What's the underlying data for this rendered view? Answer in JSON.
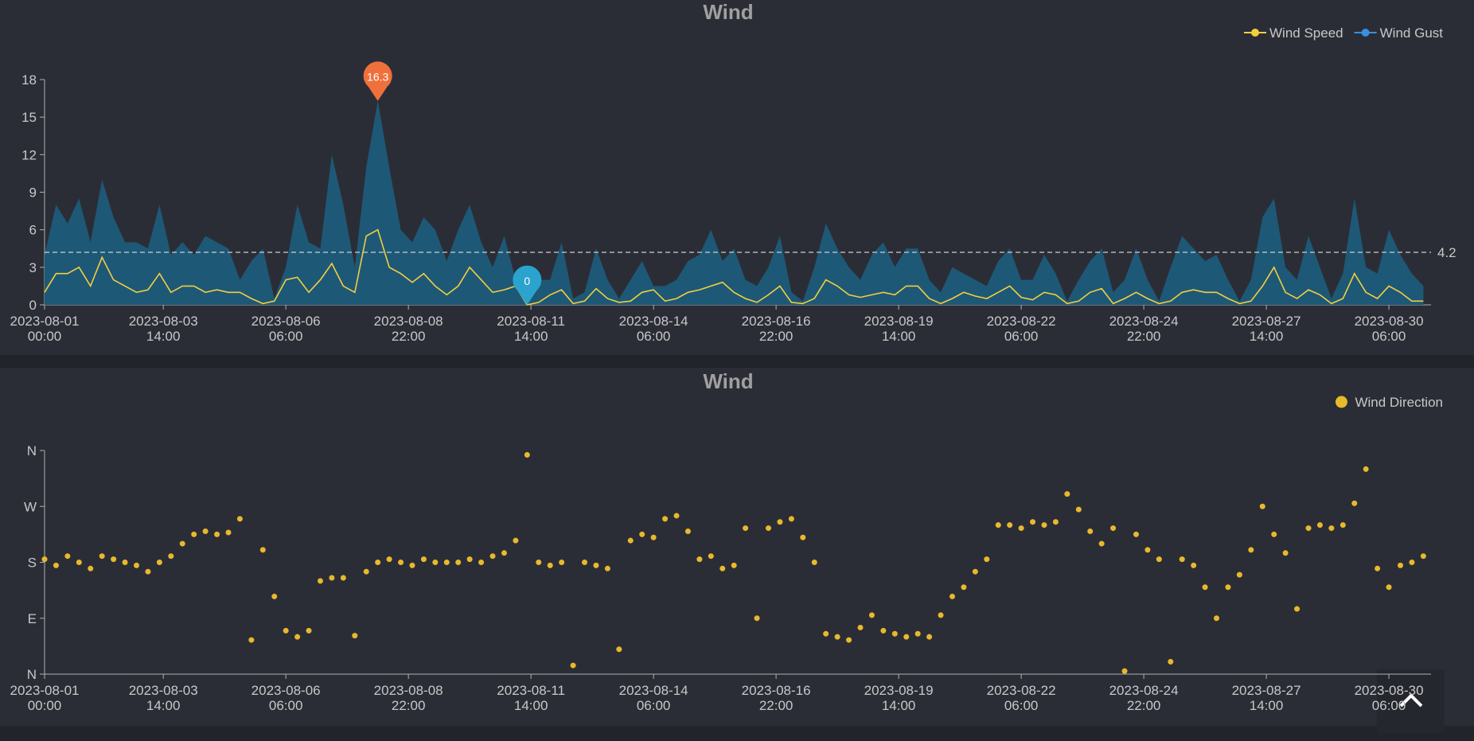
{
  "chart_data": [
    {
      "type": "line",
      "title": "Wind",
      "x": [
        "2023-08-01 00:00",
        "2023-08-01 06:00",
        "2023-08-01 12:00",
        "2023-08-01 18:00",
        "2023-08-02 00:00",
        "2023-08-02 06:00",
        "2023-08-02 12:00",
        "2023-08-02 18:00",
        "2023-08-03 00:00",
        "2023-08-03 06:00",
        "2023-08-03 12:00",
        "2023-08-03 18:00",
        "2023-08-04 00:00",
        "2023-08-04 06:00",
        "2023-08-04 12:00",
        "2023-08-04 18:00",
        "2023-08-05 00:00",
        "2023-08-05 06:00",
        "2023-08-05 12:00",
        "2023-08-05 18:00",
        "2023-08-06 00:00",
        "2023-08-06 06:00",
        "2023-08-06 12:00",
        "2023-08-06 18:00",
        "2023-08-07 00:00",
        "2023-08-07 06:00",
        "2023-08-07 12:00",
        "2023-08-07 18:00",
        "2023-08-08 00:00",
        "2023-08-08 06:00",
        "2023-08-08 12:00",
        "2023-08-08 18:00",
        "2023-08-09 00:00",
        "2023-08-09 06:00",
        "2023-08-09 12:00",
        "2023-08-09 18:00",
        "2023-08-10 00:00",
        "2023-08-10 06:00",
        "2023-08-10 12:00",
        "2023-08-10 18:00",
        "2023-08-11 00:00",
        "2023-08-11 06:00",
        "2023-08-11 12:00",
        "2023-08-11 18:00",
        "2023-08-12 00:00",
        "2023-08-12 06:00",
        "2023-08-12 12:00",
        "2023-08-12 18:00",
        "2023-08-13 00:00",
        "2023-08-13 06:00",
        "2023-08-13 12:00",
        "2023-08-13 18:00",
        "2023-08-14 00:00",
        "2023-08-14 06:00",
        "2023-08-14 12:00",
        "2023-08-14 18:00",
        "2023-08-15 00:00",
        "2023-08-15 06:00",
        "2023-08-15 12:00",
        "2023-08-15 18:00",
        "2023-08-16 00:00",
        "2023-08-16 06:00",
        "2023-08-16 12:00",
        "2023-08-16 18:00",
        "2023-08-17 00:00",
        "2023-08-17 06:00",
        "2023-08-17 12:00",
        "2023-08-17 18:00",
        "2023-08-18 00:00",
        "2023-08-18 06:00",
        "2023-08-18 12:00",
        "2023-08-18 18:00",
        "2023-08-19 00:00",
        "2023-08-19 06:00",
        "2023-08-19 12:00",
        "2023-08-19 18:00",
        "2023-08-20 00:00",
        "2023-08-20 06:00",
        "2023-08-20 12:00",
        "2023-08-20 18:00",
        "2023-08-21 00:00",
        "2023-08-21 06:00",
        "2023-08-21 12:00",
        "2023-08-21 18:00",
        "2023-08-22 00:00",
        "2023-08-22 06:00",
        "2023-08-22 12:00",
        "2023-08-22 18:00",
        "2023-08-23 00:00",
        "2023-08-23 06:00",
        "2023-08-23 12:00",
        "2023-08-23 18:00",
        "2023-08-24 00:00",
        "2023-08-24 06:00",
        "2023-08-24 12:00",
        "2023-08-24 18:00",
        "2023-08-25 00:00",
        "2023-08-25 06:00",
        "2023-08-25 12:00",
        "2023-08-25 18:00",
        "2023-08-26 00:00",
        "2023-08-26 06:00",
        "2023-08-26 12:00",
        "2023-08-26 18:00",
        "2023-08-27 00:00",
        "2023-08-27 06:00",
        "2023-08-27 12:00",
        "2023-08-27 18:00",
        "2023-08-28 00:00",
        "2023-08-28 06:00",
        "2023-08-28 12:00",
        "2023-08-28 18:00",
        "2023-08-29 00:00",
        "2023-08-29 06:00",
        "2023-08-29 12:00",
        "2023-08-29 18:00",
        "2023-08-30 00:00",
        "2023-08-30 06:00",
        "2023-08-30 12:00",
        "2023-08-30 18:00",
        "2023-08-31 00:00"
      ],
      "xlim": [
        "2023-08-01 00:00",
        "2023-08-31 04:00"
      ],
      "xticks": [
        "2023-08-01 00:00",
        "2023-08-03 14:00",
        "2023-08-06 06:00",
        "2023-08-08 22:00",
        "2023-08-11 14:00",
        "2023-08-14 06:00",
        "2023-08-16 22:00",
        "2023-08-19 14:00",
        "2023-08-22 06:00",
        "2023-08-24 22:00",
        "2023-08-27 14:00",
        "2023-08-30 06:00"
      ],
      "ylim": [
        0,
        18
      ],
      "yticks": [
        0,
        3,
        6,
        9,
        12,
        15,
        18
      ],
      "legend": "top-right",
      "series": [
        {
          "name": "Wind Speed",
          "color": "#f2cf3d",
          "mark_point": "min",
          "mark_color": "#2aa3cf",
          "values": [
            1,
            2.5,
            2.5,
            3,
            1.5,
            3.8,
            2,
            1.5,
            1,
            1.2,
            2.5,
            1,
            1.5,
            1.5,
            1,
            1.2,
            1,
            1,
            0.5,
            0.1,
            0.3,
            2,
            2.2,
            1,
            2,
            3.3,
            1.5,
            1,
            5.5,
            6,
            3,
            2.5,
            1.8,
            2.5,
            1.5,
            0.8,
            1.5,
            3,
            2,
            1,
            1.2,
            1.5,
            0,
            0.2,
            0.8,
            1.2,
            0.1,
            0.3,
            1.3,
            0.5,
            0.2,
            0.3,
            1,
            1.2,
            0.3,
            0.5,
            1,
            1.2,
            1.5,
            1.8,
            1,
            0.5,
            0.2,
            0.8,
            1.5,
            0.2,
            0.1,
            0.5,
            2,
            1.5,
            0.8,
            0.6,
            0.8,
            1,
            0.8,
            1.5,
            1.5,
            0.5,
            0.1,
            0.5,
            1,
            0.7,
            0.5,
            1,
            1.5,
            0.6,
            0.4,
            1,
            0.8,
            0.1,
            0.3,
            1,
            1.3,
            0.1,
            0.5,
            1,
            0.5,
            0.1,
            0.3,
            1,
            1.2,
            1,
            1,
            0.5,
            0.1,
            0.3,
            1.5,
            3,
            1,
            0.5,
            1.2,
            0.8,
            0.1,
            0.5,
            2.5,
            1,
            0.5,
            1.5,
            1,
            0.3,
            0.3
          ]
        },
        {
          "name": "Wind Gust",
          "color": "#3a8fe0",
          "area_color": "#1e5877",
          "mark_point": "max",
          "mark_color": "#f0703c",
          "mark_line": 4.2,
          "values": [
            4,
            8,
            6.5,
            8.5,
            5,
            10,
            7,
            5,
            5,
            4.5,
            8,
            4,
            5,
            4,
            5.5,
            5,
            4.5,
            2,
            3.5,
            4.5,
            0.5,
            3,
            8,
            5,
            4.5,
            12,
            8,
            3,
            11,
            16.3,
            11,
            6,
            5,
            7,
            6,
            3.5,
            6,
            8,
            5,
            3,
            5.5,
            2,
            1,
            2,
            2,
            5,
            0.5,
            1,
            4.5,
            2,
            0.5,
            2,
            3.5,
            1.5,
            1.5,
            2,
            3.5,
            4,
            6,
            3.5,
            4.5,
            2,
            1.5,
            3,
            5.5,
            1,
            0.3,
            3,
            6.5,
            4.5,
            3,
            2,
            4,
            5,
            3,
            4.5,
            4.5,
            2,
            1,
            3,
            2.5,
            2,
            1.5,
            3.5,
            4.5,
            2,
            2,
            4,
            2.5,
            0.3,
            2,
            3.5,
            4.5,
            1,
            2,
            4.5,
            2,
            0.3,
            3,
            5.5,
            4.5,
            3.5,
            4,
            2,
            0.3,
            2,
            7,
            8.5,
            3,
            2,
            5.5,
            3,
            0.5,
            2.5,
            8.5,
            3,
            2.5,
            6,
            4,
            2.5,
            1.5
          ]
        }
      ]
    },
    {
      "type": "scatter",
      "title": "Wind",
      "xlim": [
        "2023-08-01 00:00",
        "2023-08-31 04:00"
      ],
      "xticks": [
        "2023-08-01 00:00",
        "2023-08-03 14:00",
        "2023-08-06 06:00",
        "2023-08-08 22:00",
        "2023-08-11 14:00",
        "2023-08-14 06:00",
        "2023-08-16 22:00",
        "2023-08-19 14:00",
        "2023-08-22 06:00",
        "2023-08-24 22:00",
        "2023-08-27 14:00",
        "2023-08-30 06:00"
      ],
      "ylim": [
        0,
        360
      ],
      "yticks": [
        {
          "value": 0,
          "label": "N"
        },
        {
          "value": 90,
          "label": "E"
        },
        {
          "value": 180,
          "label": "S"
        },
        {
          "value": 270,
          "label": "W"
        },
        {
          "value": 360,
          "label": "N"
        }
      ],
      "legend": "top-right",
      "series": [
        {
          "name": "Wind Direction",
          "color": "#e8b92c",
          "values": [
            185,
            175,
            190,
            180,
            170,
            190,
            185,
            180,
            175,
            165,
            180,
            190,
            210,
            225,
            230,
            225,
            228,
            250,
            55,
            200,
            125,
            70,
            60,
            70,
            150,
            155,
            155,
            62,
            165,
            180,
            185,
            180,
            175,
            185,
            180,
            180,
            180,
            185,
            180,
            190,
            195,
            215,
            353,
            180,
            175,
            180,
            14,
            180,
            175,
            170,
            40,
            215,
            225,
            220,
            250,
            255,
            230,
            185,
            190,
            170,
            175,
            235,
            90,
            235,
            245,
            250,
            220,
            180,
            65,
            60,
            55,
            75,
            95,
            70,
            65,
            60,
            65,
            60,
            95,
            125,
            140,
            165,
            185,
            240,
            240,
            235,
            245,
            240,
            245,
            290,
            265,
            230,
            210,
            235,
            5,
            225,
            200,
            185,
            20,
            185,
            175,
            140,
            90,
            140,
            160,
            200,
            270,
            225,
            195,
            105,
            235,
            240,
            235,
            240,
            275,
            330,
            170,
            140,
            175,
            180,
            190
          ]
        }
      ]
    }
  ]
}
